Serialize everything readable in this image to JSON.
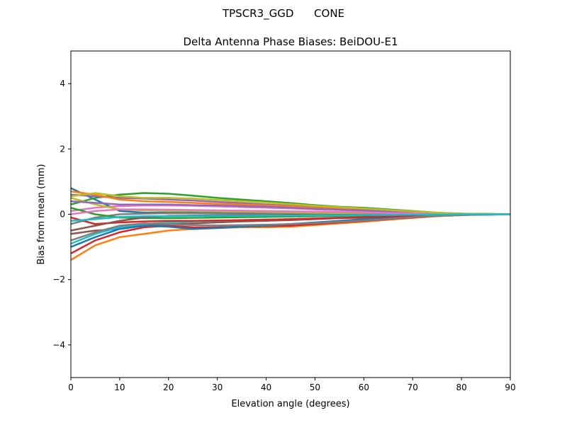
{
  "chart_data": {
    "type": "line",
    "suptitle": "TPSCR3_GGD      CONE",
    "title": "Delta Antenna Phase Biases: BeiDOU-E1",
    "xlabel": "Elevation angle (degrees)",
    "ylabel": "Bias from mean (mm)",
    "xlim": [
      0,
      90
    ],
    "ylim": [
      -5,
      5
    ],
    "xticks": [
      0,
      10,
      20,
      30,
      40,
      50,
      60,
      70,
      80,
      90
    ],
    "yticks": [
      -4,
      -2,
      0,
      2,
      4
    ],
    "ytick_labels": [
      "−4",
      "−2",
      "0",
      "2",
      "4"
    ],
    "grid": false,
    "colors": [
      "#1f77b4",
      "#ff7f0e",
      "#2ca02c",
      "#d62728",
      "#9467bd",
      "#8c564b",
      "#e377c2",
      "#7f7f7f",
      "#bcbd22",
      "#17becf"
    ],
    "x": [
      0,
      5,
      10,
      15,
      20,
      25,
      30,
      35,
      40,
      45,
      50,
      55,
      60,
      65,
      70,
      75,
      80,
      85,
      90
    ],
    "series": [
      [
        0.8,
        0.45,
        0.1,
        0.05,
        0.05,
        0.05,
        0.04,
        0.03,
        0.03,
        0.02,
        0.02,
        0.02,
        0.01,
        0.01,
        0.01,
        0,
        0,
        0,
        0
      ],
      [
        -1.4,
        -0.95,
        -0.7,
        -0.6,
        -0.5,
        -0.45,
        -0.42,
        -0.4,
        -0.4,
        -0.38,
        -0.33,
        -0.28,
        -0.23,
        -0.17,
        -0.11,
        -0.06,
        -0.03,
        -0.01,
        0
      ],
      [
        0.3,
        0.5,
        0.6,
        0.65,
        0.63,
        0.57,
        0.5,
        0.45,
        0.4,
        0.34,
        0.28,
        0.23,
        0.2,
        0.15,
        0.1,
        0.05,
        0.02,
        0.01,
        0
      ],
      [
        -1.2,
        -0.8,
        -0.55,
        -0.4,
        -0.35,
        -0.4,
        -0.4,
        -0.38,
        -0.36,
        -0.35,
        -0.3,
        -0.25,
        -0.2,
        -0.15,
        -0.1,
        -0.05,
        -0.02,
        -0.01,
        0
      ],
      [
        0.6,
        0.55,
        0.5,
        0.48,
        0.45,
        0.42,
        0.38,
        0.34,
        0.3,
        0.26,
        0.22,
        0.18,
        0.15,
        0.11,
        0.08,
        0.04,
        0.02,
        0.01,
        0
      ],
      [
        -0.6,
        -0.5,
        -0.45,
        -0.35,
        -0.3,
        -0.28,
        -0.25,
        -0.22,
        -0.2,
        -0.18,
        -0.15,
        -0.12,
        -0.1,
        -0.07,
        -0.05,
        -0.03,
        -0.01,
        0,
        0
      ],
      [
        0.1,
        0.2,
        0.25,
        0.27,
        0.27,
        0.26,
        0.24,
        0.22,
        0.2,
        0.18,
        0.15,
        0.13,
        0.1,
        0.08,
        0.05,
        0.03,
        0.01,
        0,
        0
      ],
      [
        -0.3,
        -0.1,
        0.0,
        0.02,
        0.03,
        0.03,
        0.02,
        0.02,
        0.01,
        0.01,
        0,
        0,
        0,
        0,
        0,
        0,
        0,
        0,
        0
      ],
      [
        0.5,
        0.3,
        0.15,
        0.12,
        0.1,
        0.1,
        0.09,
        0.08,
        0.07,
        0.06,
        0.05,
        0.04,
        0.03,
        0.02,
        0.01,
        0,
        0,
        0,
        0
      ],
      [
        -0.9,
        -0.6,
        -0.4,
        -0.3,
        -0.25,
        -0.22,
        -0.2,
        -0.18,
        -0.16,
        -0.15,
        -0.13,
        -0.1,
        -0.08,
        -0.06,
        -0.04,
        -0.02,
        -0.01,
        0,
        0
      ],
      [
        -1.0,
        -0.7,
        -0.45,
        -0.35,
        -0.38,
        -0.45,
        -0.42,
        -0.38,
        -0.35,
        -0.3,
        -0.25,
        -0.2,
        -0.15,
        -0.1,
        -0.07,
        -0.04,
        -0.02,
        -0.01,
        0
      ],
      [
        0.7,
        0.6,
        0.45,
        0.4,
        0.38,
        0.35,
        0.32,
        0.3,
        0.27,
        0.24,
        0.2,
        0.17,
        0.14,
        0.1,
        0.07,
        0.04,
        0.02,
        0.01,
        0
      ],
      [
        0.2,
        0.0,
        -0.1,
        -0.12,
        -0.12,
        -0.11,
        -0.1,
        -0.09,
        -0.08,
        -0.07,
        -0.06,
        -0.05,
        -0.04,
        -0.03,
        -0.02,
        -0.01,
        0,
        0,
        0
      ],
      [
        -0.1,
        -0.3,
        -0.25,
        -0.22,
        -0.2,
        -0.2,
        -0.19,
        -0.18,
        -0.17,
        -0.15,
        -0.13,
        -0.11,
        -0.09,
        -0.07,
        -0.05,
        -0.03,
        -0.01,
        0,
        0
      ],
      [
        0.4,
        0.35,
        0.3,
        0.3,
        0.3,
        0.28,
        0.27,
        0.25,
        0.23,
        0.2,
        0.17,
        0.14,
        0.12,
        0.09,
        0.06,
        0.03,
        0.01,
        0,
        0
      ],
      [
        -0.5,
        -0.35,
        -0.2,
        -0.1,
        -0.05,
        -0.04,
        -0.04,
        -0.03,
        -0.03,
        -0.02,
        -0.02,
        -0.02,
        -0.01,
        -0.01,
        0,
        0,
        0,
        0,
        0
      ],
      [
        0.0,
        0.1,
        0.15,
        0.15,
        0.14,
        0.13,
        0.12,
        0.11,
        0.1,
        0.09,
        0.08,
        0.07,
        0.06,
        0.04,
        0.03,
        0.02,
        0.01,
        0,
        0
      ],
      [
        -0.8,
        -0.55,
        -0.35,
        -0.28,
        -0.3,
        -0.33,
        -0.34,
        -0.33,
        -0.32,
        -0.3,
        -0.27,
        -0.23,
        -0.19,
        -0.14,
        -0.09,
        -0.05,
        -0.02,
        -0.01,
        0
      ],
      [
        0.55,
        0.65,
        0.55,
        0.5,
        0.5,
        0.48,
        0.44,
        0.4,
        0.36,
        0.31,
        0.26,
        0.22,
        0.18,
        0.13,
        0.09,
        0.05,
        0.02,
        0.01,
        0
      ],
      [
        -0.2,
        -0.15,
        -0.08,
        -0.06,
        -0.06,
        -0.05,
        -0.05,
        -0.05,
        -0.04,
        -0.04,
        -0.03,
        -0.03,
        -0.02,
        -0.02,
        -0.01,
        -0.01,
        0,
        0,
        0
      ]
    ]
  }
}
